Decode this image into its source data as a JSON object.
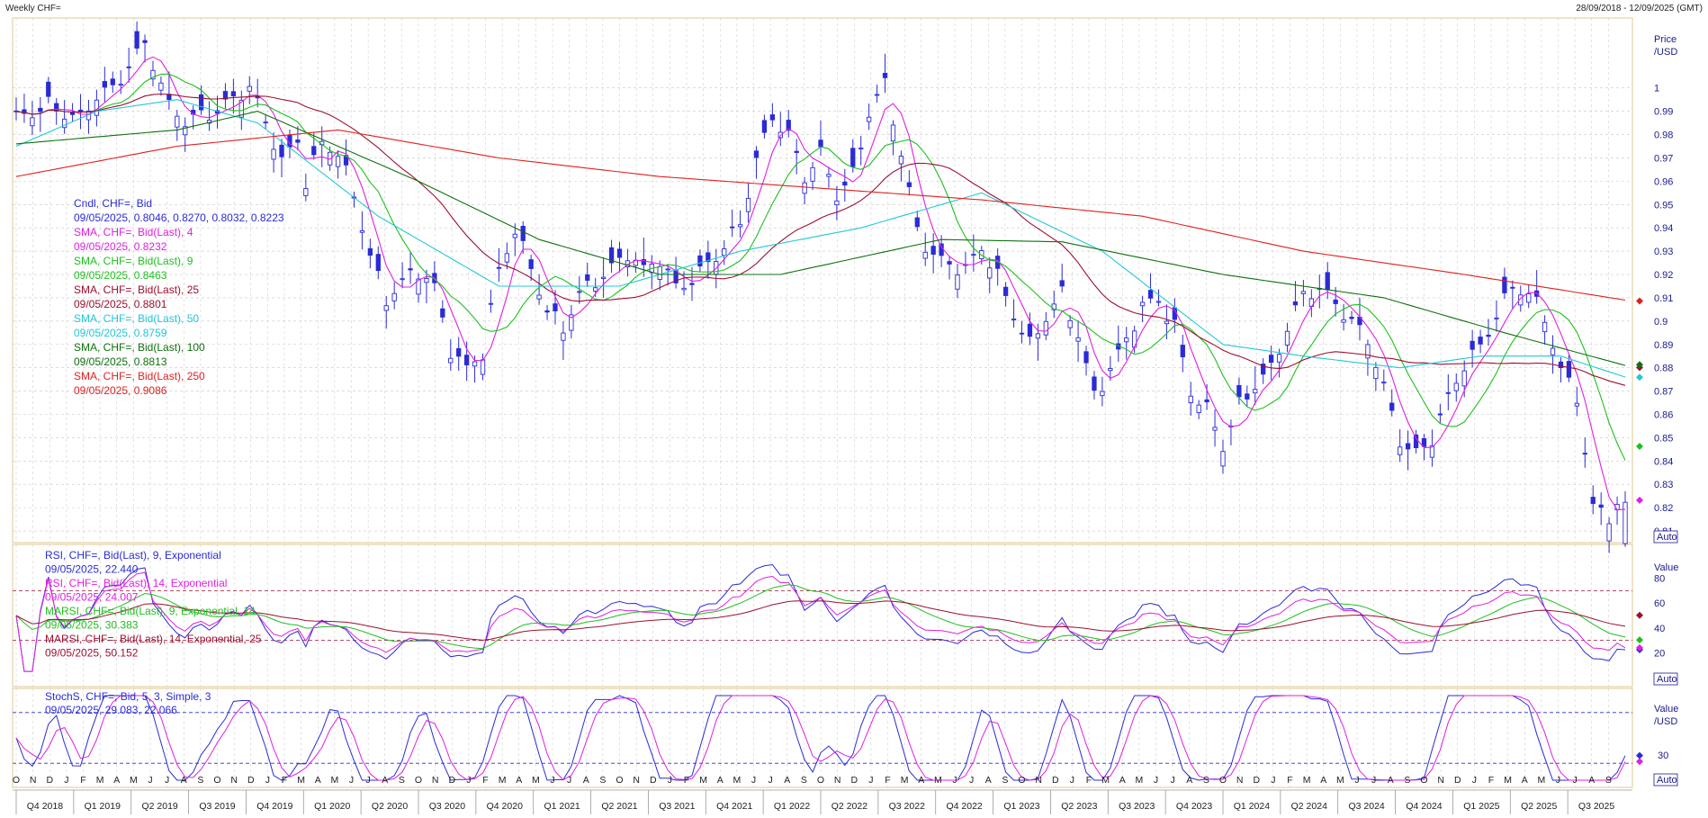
{
  "header": {
    "title": "Weekly CHF=",
    "date_range": "28/09/2018 - 12/09/2025 (GMT)"
  },
  "colors": {
    "candle": "#2b2bd6",
    "sma4": "#e020e0",
    "sma9": "#1fbf1f",
    "sma25": "#9b1030",
    "sma50": "#20c8d8",
    "sma100": "#107010",
    "sma250": "#e02020",
    "rsi9": "#2b2bd6",
    "rsi14": "#e020e0",
    "marsi9": "#1fbf1f",
    "marsi14": "#9b1030",
    "stoch_k": "#2b2bd6",
    "stoch_d": "#e020e0",
    "grid": "#c8c8c8",
    "axis_text": "#1a1a8c"
  },
  "price_panel": {
    "unit_label": [
      "Price",
      "/USD"
    ],
    "auto_label": "Auto",
    "legend": [
      {
        "text": "Cndl, CHF=, Bid",
        "color": "#2b2bd6"
      },
      {
        "text": "09/05/2025, 0.8046, 0.8270, 0.8032, 0.8223",
        "color": "#2b2bd6"
      },
      {
        "text": "SMA, CHF=, Bid(Last), 4",
        "color": "#e020e0"
      },
      {
        "text": "09/05/2025, 0.8232",
        "color": "#e020e0"
      },
      {
        "text": "SMA, CHF=, Bid(Last), 9",
        "color": "#1fbf1f"
      },
      {
        "text": "09/05/2025, 0.8463",
        "color": "#1fbf1f"
      },
      {
        "text": "SMA, CHF=, Bid(Last), 25",
        "color": "#9b1030"
      },
      {
        "text": "09/05/2025, 0.8801",
        "color": "#9b1030"
      },
      {
        "text": "SMA, CHF=, Bid(Last), 50",
        "color": "#20c8d8"
      },
      {
        "text": "09/05/2025, 0.8759",
        "color": "#20c8d8"
      },
      {
        "text": "SMA, CHF=, Bid(Last), 100",
        "color": "#107010"
      },
      {
        "text": "09/05/2025, 0.8813",
        "color": "#107010"
      },
      {
        "text": "SMA, CHF=, Bid(Last), 250",
        "color": "#e02020"
      },
      {
        "text": "09/05/2025, 0.9086",
        "color": "#e02020"
      }
    ]
  },
  "rsi_panel": {
    "unit_label": [
      "Value"
    ],
    "auto_label": "Auto",
    "legend": [
      {
        "text": "RSI, CHF=, Bid(Last), 9, Exponential",
        "color": "#2b2bd6"
      },
      {
        "text": "09/05/2025, 22.440",
        "color": "#2b2bd6"
      },
      {
        "text": "RSI, CHF=, Bid(Last), 14, Exponential",
        "color": "#e020e0"
      },
      {
        "text": "09/05/2025, 24.007",
        "color": "#e020e0"
      },
      {
        "text": "MARSI, CHF=, Bid(Last), 9, Exponential, 14",
        "color": "#1fbf1f"
      },
      {
        "text": "09/05/2025, 30.383",
        "color": "#1fbf1f"
      },
      {
        "text": "MARSI, CHF=, Bid(Last), 14, Exponential, 25",
        "color": "#9b1030"
      },
      {
        "text": "09/05/2025, 50.152",
        "color": "#9b1030"
      }
    ]
  },
  "stoch_panel": {
    "unit_label": [
      "Value",
      "/USD"
    ],
    "auto_label": "Auto",
    "legend": [
      {
        "text": "StochS, CHF=, Bid, 5, 3, Simple, 3",
        "color": "#2b2bd6"
      },
      {
        "text": "09/05/2025, 29.083, 22.066",
        "color": "#2b2bd6"
      }
    ]
  },
  "chart_data": [
    {
      "type": "candlestick",
      "title": "Weekly CHF=",
      "ylabel": "Price /USD",
      "ylim": [
        0.805,
        1.03
      ],
      "yticks": [
        "1",
        "0.99",
        "0.98",
        "0.97",
        "0.96",
        "0.95",
        "0.94",
        "0.93",
        "0.92",
        "0.91",
        "0.9",
        "0.89",
        "0.88",
        "0.87",
        "0.86",
        "0.85",
        "0.84",
        "0.83",
        "0.82",
        "0.81"
      ],
      "x_months": [
        "O",
        "N",
        "D",
        "J",
        "F",
        "M",
        "A",
        "M",
        "J",
        "J",
        "A",
        "S",
        "O",
        "N",
        "D",
        "J",
        "F",
        "M",
        "A",
        "M",
        "J",
        "J",
        "A",
        "S",
        "O",
        "N",
        "D",
        "J",
        "F",
        "M",
        "A",
        "M",
        "J",
        "J",
        "A",
        "S",
        "O",
        "N",
        "D",
        "J",
        "F",
        "M",
        "A",
        "M",
        "J",
        "J",
        "A",
        "S",
        "O",
        "N",
        "D",
        "J",
        "F",
        "M",
        "A",
        "M",
        "J",
        "J",
        "A",
        "S",
        "O",
        "N",
        "D",
        "J",
        "F",
        "M",
        "A",
        "M",
        "J",
        "J",
        "A",
        "S",
        "O",
        "N",
        "D",
        "J",
        "F",
        "M",
        "A",
        "M",
        "J",
        "J",
        "A",
        "S",
        "O",
        "N",
        "D",
        "J",
        "F",
        "M",
        "A",
        "M",
        "J",
        "J",
        "A",
        "S"
      ],
      "x_quarters": [
        "Q4 2018",
        "Q1 2019",
        "Q2 2019",
        "Q3 2019",
        "Q4 2019",
        "Q1 2020",
        "Q2 2020",
        "Q3 2020",
        "Q4 2020",
        "Q1 2021",
        "Q2 2021",
        "Q3 2021",
        "Q4 2021",
        "Q1 2022",
        "Q2 2022",
        "Q3 2022",
        "Q4 2022",
        "Q1 2023",
        "Q2 2023",
        "Q3 2023",
        "Q4 2023",
        "Q1 2024",
        "Q2 2024",
        "Q3 2024",
        "Q4 2024",
        "Q1 2025",
        "Q2 2025",
        "Q3 2025"
      ],
      "close_path": [
        [
          0,
          0.985
        ],
        [
          2,
          0.99
        ],
        [
          4,
          0.995
        ],
        [
          6,
          0.99
        ],
        [
          8,
          0.985
        ],
        [
          10,
          0.995
        ],
        [
          12,
          1.0
        ],
        [
          14,
          1.012
        ],
        [
          16,
          1.02
        ],
        [
          17,
          1.01
        ],
        [
          19,
          0.99
        ],
        [
          21,
          0.985
        ],
        [
          23,
          0.99
        ],
        [
          25,
          0.992
        ],
        [
          27,
          0.995
        ],
        [
          29,
          0.998
        ],
        [
          31,
          0.985
        ],
        [
          33,
          0.97
        ],
        [
          35,
          0.98
        ],
        [
          36,
          0.96
        ],
        [
          38,
          0.975
        ],
        [
          40,
          0.97
        ],
        [
          42,
          0.955
        ],
        [
          44,
          0.93
        ],
        [
          46,
          0.91
        ],
        [
          48,
          0.915
        ],
        [
          50,
          0.92
        ],
        [
          52,
          0.915
        ],
        [
          54,
          0.89
        ],
        [
          56,
          0.88
        ],
        [
          58,
          0.885
        ],
        [
          60,
          0.92
        ],
        [
          62,
          0.94
        ],
        [
          64,
          0.925
        ],
        [
          66,
          0.905
        ],
        [
          68,
          0.895
        ],
        [
          70,
          0.91
        ],
        [
          72,
          0.918
        ],
        [
          74,
          0.925
        ],
        [
          76,
          0.93
        ],
        [
          78,
          0.92
        ],
        [
          80,
          0.925
        ],
        [
          82,
          0.915
        ],
        [
          84,
          0.92
        ],
        [
          86,
          0.925
        ],
        [
          88,
          0.93
        ],
        [
          90,
          0.94
        ],
        [
          92,
          0.97
        ],
        [
          94,
          0.99
        ],
        [
          96,
          0.98
        ],
        [
          98,
          0.96
        ],
        [
          100,
          0.97
        ],
        [
          102,
          0.955
        ],
        [
          104,
          0.965
        ],
        [
          106,
          0.99
        ],
        [
          108,
          1.0
        ],
        [
          110,
          0.97
        ],
        [
          112,
          0.94
        ],
        [
          114,
          0.93
        ],
        [
          116,
          0.925
        ],
        [
          118,
          0.92
        ],
        [
          120,
          0.93
        ],
        [
          122,
          0.92
        ],
        [
          124,
          0.905
        ],
        [
          126,
          0.89
        ],
        [
          128,
          0.9
        ],
        [
          130,
          0.91
        ],
        [
          132,
          0.895
        ],
        [
          134,
          0.87
        ],
        [
          136,
          0.88
        ],
        [
          138,
          0.89
        ],
        [
          140,
          0.905
        ],
        [
          142,
          0.91
        ],
        [
          144,
          0.9
        ],
        [
          146,
          0.87
        ],
        [
          148,
          0.86
        ],
        [
          150,
          0.845
        ],
        [
          152,
          0.865
        ],
        [
          154,
          0.875
        ],
        [
          156,
          0.88
        ],
        [
          158,
          0.895
        ],
        [
          160,
          0.91
        ],
        [
          162,
          0.915
        ],
        [
          164,
          0.91
        ],
        [
          166,
          0.9
        ],
        [
          168,
          0.89
        ],
        [
          170,
          0.87
        ],
        [
          172,
          0.85
        ],
        [
          174,
          0.845
        ],
        [
          176,
          0.85
        ],
        [
          178,
          0.865
        ],
        [
          180,
          0.88
        ],
        [
          182,
          0.89
        ],
        [
          184,
          0.905
        ],
        [
          186,
          0.915
        ],
        [
          188,
          0.91
        ],
        [
          190,
          0.9
        ],
        [
          192,
          0.88
        ],
        [
          194,
          0.87
        ],
        [
          196,
          0.82
        ],
        [
          198,
          0.815
        ],
        [
          200,
          0.822
        ]
      ],
      "candle": {
        "date": "09/05/2025",
        "open": 0.8046,
        "high": 0.827,
        "low": 0.8032,
        "close": 0.8223
      },
      "series": [
        {
          "name": "SMA, CHF=, Bid(Last), 4",
          "last": 0.8232
        },
        {
          "name": "SMA, CHF=, Bid(Last), 9",
          "last": 0.8463
        },
        {
          "name": "SMA, CHF=, Bid(Last), 25",
          "last": 0.8801
        },
        {
          "name": "SMA, CHF=, Bid(Last), 50",
          "last": 0.8759
        },
        {
          "name": "SMA, CHF=, Bid(Last), 100",
          "last": 0.8813
        },
        {
          "name": "SMA, CHF=, Bid(Last), 250",
          "last": 0.9086
        }
      ],
      "sma250_path": [
        [
          0,
          0.962
        ],
        [
          20,
          0.975
        ],
        [
          40,
          0.982
        ],
        [
          60,
          0.97
        ],
        [
          80,
          0.962
        ],
        [
          100,
          0.957
        ],
        [
          120,
          0.952
        ],
        [
          140,
          0.945
        ],
        [
          160,
          0.93
        ],
        [
          180,
          0.92
        ],
        [
          200,
          0.909
        ]
      ],
      "sma100_path": [
        [
          0,
          0.976
        ],
        [
          20,
          0.982
        ],
        [
          30,
          0.99
        ],
        [
          50,
          0.96
        ],
        [
          65,
          0.935
        ],
        [
          80,
          0.92
        ],
        [
          95,
          0.92
        ],
        [
          115,
          0.935
        ],
        [
          130,
          0.934
        ],
        [
          150,
          0.92
        ],
        [
          170,
          0.91
        ],
        [
          185,
          0.895
        ],
        [
          200,
          0.881
        ]
      ],
      "sma50_path": [
        [
          0,
          0.975
        ],
        [
          10,
          0.99
        ],
        [
          20,
          0.995
        ],
        [
          30,
          0.985
        ],
        [
          45,
          0.945
        ],
        [
          60,
          0.915
        ],
        [
          75,
          0.915
        ],
        [
          90,
          0.93
        ],
        [
          105,
          0.94
        ],
        [
          120,
          0.955
        ],
        [
          135,
          0.93
        ],
        [
          150,
          0.89
        ],
        [
          160,
          0.885
        ],
        [
          172,
          0.88
        ],
        [
          182,
          0.885
        ],
        [
          192,
          0.885
        ],
        [
          200,
          0.876
        ]
      ]
    },
    {
      "type": "line",
      "title": "RSI",
      "ylim": [
        0,
        100
      ],
      "yticks": [
        "80",
        "60",
        "40",
        "20"
      ],
      "series": [
        {
          "name": "RSI, CHF=, Bid(Last), 9, Exponential",
          "last": 22.44
        },
        {
          "name": "RSI, CHF=, Bid(Last), 14, Exponential",
          "last": 24.007
        },
        {
          "name": "MARSI, CHF=, Bid(Last), 9, Exponential, 14",
          "last": 30.383
        },
        {
          "name": "MARSI, CHF=, Bid(Last), 14, Exponential, 25",
          "last": 50.152
        }
      ],
      "reference_lines": [
        70,
        30
      ]
    },
    {
      "type": "line",
      "title": "StochS",
      "ylim": [
        0,
        100
      ],
      "yticks": [
        "30"
      ],
      "series": [
        {
          "name": "StochS, CHF=, Bid, 5, 3, Simple, 3 %K",
          "last": 29.083
        },
        {
          "name": "StochS, CHF=, Bid, 5, 3, Simple, 3 %D",
          "last": 22.066
        }
      ],
      "reference_lines": [
        80,
        20
      ]
    }
  ]
}
